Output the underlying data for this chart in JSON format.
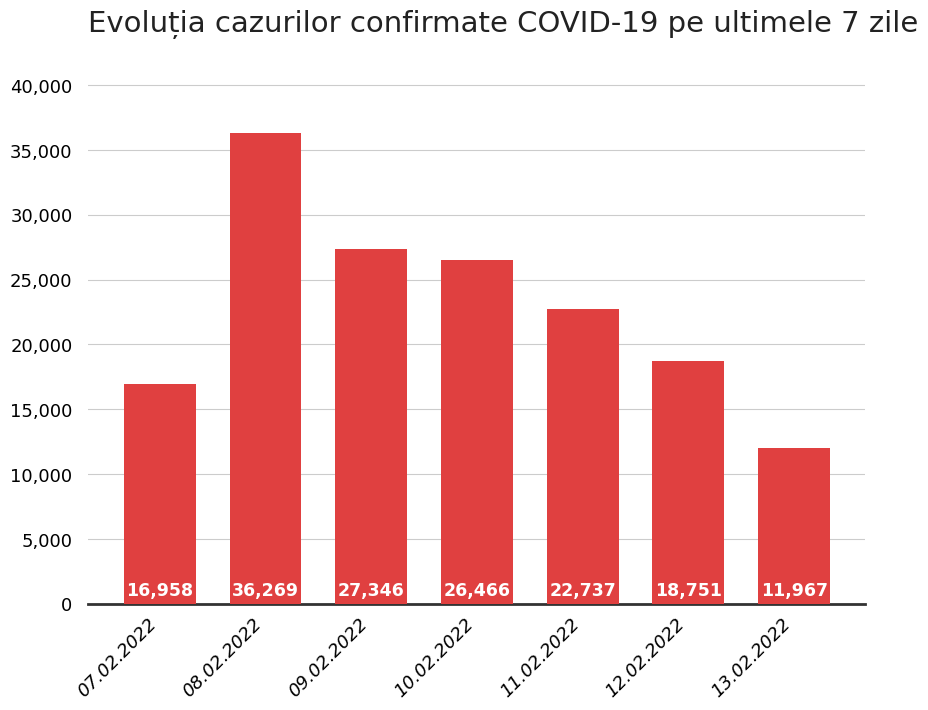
{
  "title": "Evoluția cazurilor confirmate COVID-19 pe ultimele 7 zile",
  "categories": [
    "07.02.2022",
    "08.02.2022",
    "09.02.2022",
    "10.02.2022",
    "11.02.2022",
    "12.02.2022",
    "13.02.2022"
  ],
  "values": [
    16958,
    36269,
    27346,
    26466,
    22737,
    18751,
    11967
  ],
  "bar_color": "#e04040",
  "label_color": "#ffffff",
  "background_color": "#ffffff",
  "ylim": [
    0,
    42000
  ],
  "yticks": [
    0,
    5000,
    10000,
    15000,
    20000,
    25000,
    30000,
    35000,
    40000
  ],
  "title_fontsize": 21,
  "tick_fontsize": 13,
  "value_fontsize": 12.5
}
